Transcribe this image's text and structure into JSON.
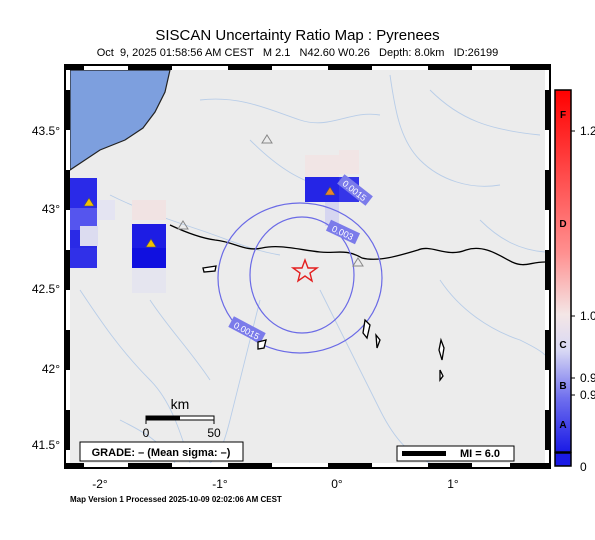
{
  "header": {
    "title": "SISCAN Uncertainty Ratio Map : Pyrenees",
    "subtitle_date": "Oct  9, 2025 01:58:56 AM CEST",
    "subtitle_mag": "M 2.1",
    "subtitle_loc": "N42.60 W0.26",
    "subtitle_depth": "Depth: 8.0km",
    "subtitle_id": "ID:26199"
  },
  "map": {
    "lon_ticks": [
      "-2°",
      "-1°",
      "0°",
      "1°"
    ],
    "lat_ticks": [
      "43.5°",
      "43°",
      "42.5°",
      "42°",
      "41.5°"
    ],
    "contours": [
      "0.0015",
      "0.003",
      "0.0015"
    ],
    "scale_unit": "km",
    "scale_ticks": [
      "0",
      "50"
    ],
    "grade_label": "GRADE: – (Mean sigma: –)",
    "mi_label": "MI = 6.0",
    "colors": {
      "land": "#ececec",
      "sea": "#7d9fde",
      "epicenter": "#e41f1f"
    }
  },
  "colorbar": {
    "grades": [
      "F",
      "D",
      "C",
      "B",
      "A"
    ],
    "values": [
      "1.2",
      "1.0",
      "0.9",
      "0.9",
      "0"
    ]
  },
  "footer": {
    "text": "Map Version 1 Processed 2025-10-09 02:02:06 AM CEST"
  }
}
